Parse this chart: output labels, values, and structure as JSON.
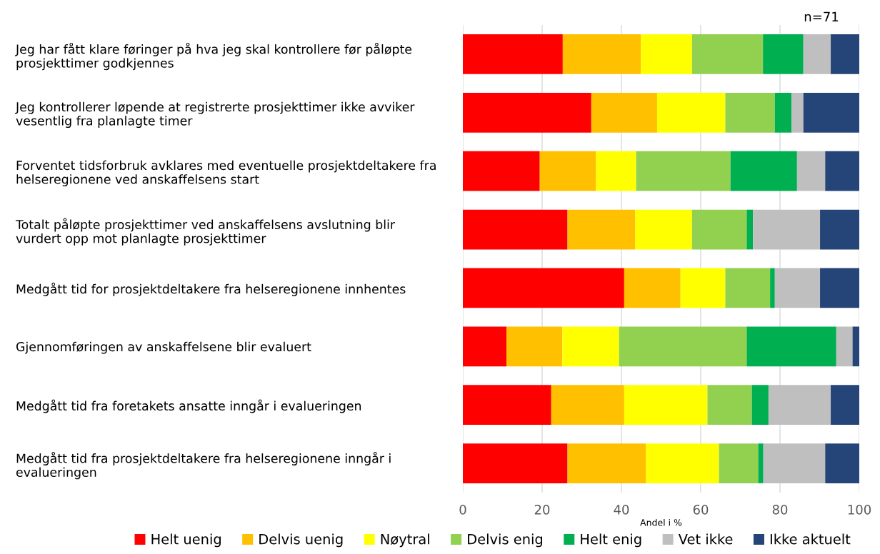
{
  "chart_data": {
    "type": "bar",
    "orientation": "horizontal",
    "stacked": true,
    "categories": [
      "Jeg har fått klare føringer på hva jeg skal kontrollere før påløpte\nprosjekttimer godkjennes",
      "Jeg kontrollerer løpende at registrerte prosjekttimer ikke avviker\nvesentlig fra planlagte timer",
      "Forventet tidsforbruk avklares med eventuelle prosjektdeltakere fra\nhelseregionene ved anskaffelsens start",
      "Totalt påløpte prosjekttimer ved anskaffelsens avslutning blir\nvurdert opp mot planlagte prosjekttimer",
      "Medgått tid for prosjektdeltakere fra helseregionene innhentes",
      "Gjennomføringen av anskaffelsene blir evaluert",
      "Medgått tid fra foretakets ansatte inngår i evalueringen",
      "Medgått tid fra prosjektdeltakere fra helseregionene inngår i\nevalueringen"
    ],
    "series": [
      {
        "name": "Helt uenig",
        "color": "#ff0000",
        "values": [
          25.2,
          32.4,
          19.4,
          26.4,
          40.7,
          11.0,
          22.3,
          26.4
        ]
      },
      {
        "name": "Delvis uenig",
        "color": "#ffc000",
        "values": [
          19.7,
          16.6,
          14.2,
          17.1,
          14.2,
          14.1,
          18.4,
          19.8
        ]
      },
      {
        "name": "Nøytral",
        "color": "#ffff00",
        "values": [
          12.9,
          17.2,
          10.1,
          14.3,
          11.3,
          14.3,
          21.0,
          18.4
        ]
      },
      {
        "name": "Delvis enig",
        "color": "#92d050",
        "values": [
          17.9,
          12.5,
          23.8,
          13.8,
          11.3,
          32.2,
          11.2,
          9.9
        ]
      },
      {
        "name": "Helt enig",
        "color": "#00b050",
        "values": [
          10.2,
          4.2,
          16.8,
          1.6,
          1.2,
          22.6,
          4.2,
          1.3
        ]
      },
      {
        "name": "Vet ikke",
        "color": "#bfbfbf",
        "values": [
          6.9,
          3.0,
          7.1,
          16.9,
          11.4,
          4.1,
          15.7,
          15.6
        ]
      },
      {
        "name": "Ikke aktuelt",
        "color": "#254478",
        "values": [
          7.2,
          14.1,
          8.6,
          9.9,
          9.9,
          1.7,
          7.2,
          8.6
        ]
      }
    ],
    "xlim": [
      0,
      100
    ],
    "xticks": [
      0,
      20,
      40,
      60,
      80,
      100
    ],
    "xlabel": "Andel i %",
    "annotations": [
      "n=71"
    ],
    "grid": "x",
    "legend": "bottom"
  }
}
